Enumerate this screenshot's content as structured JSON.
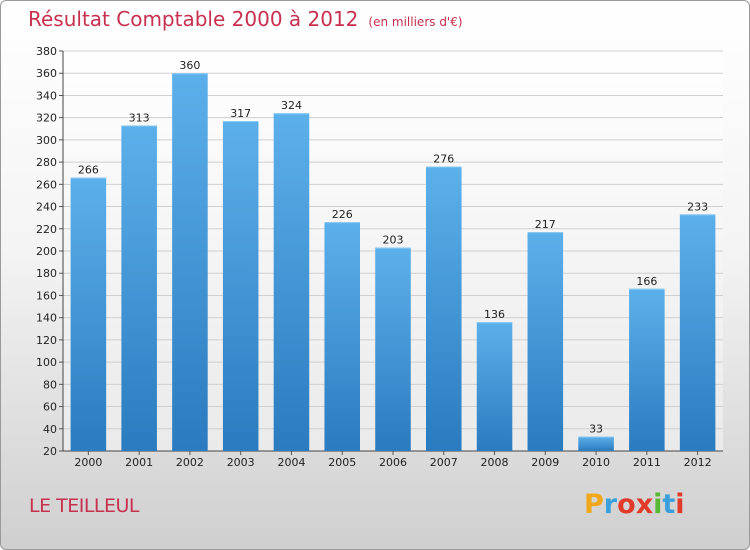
{
  "header": {
    "title": "Résultat Comptable 2000 à 2012",
    "subtitle": "(en milliers d'€)"
  },
  "footer": {
    "commune": "LE TEILLEUL",
    "logo_letters": [
      "P",
      "r",
      "o",
      "x",
      "i",
      "t",
      "i"
    ],
    "logo_colors": [
      "#f0a81a",
      "#3aa0dc",
      "#e23a2a",
      "#e23a2a",
      "#58b935",
      "#3aa0dc",
      "#e23a2a"
    ]
  },
  "chart_data": {
    "type": "bar",
    "categories": [
      "2000",
      "2001",
      "2002",
      "2003",
      "2004",
      "2005",
      "2006",
      "2007",
      "2008",
      "2009",
      "2010",
      "2011",
      "2012"
    ],
    "values": [
      266,
      313,
      360,
      317,
      324,
      226,
      203,
      276,
      136,
      217,
      33,
      166,
      233
    ],
    "title": "Résultat Comptable 2000 à 2012",
    "subtitle": "(en milliers d'€)",
    "xlabel": "",
    "ylabel": "",
    "ylim": [
      20,
      380
    ],
    "yticks": [
      20,
      40,
      60,
      80,
      100,
      120,
      140,
      160,
      180,
      200,
      220,
      240,
      260,
      280,
      300,
      320,
      340,
      360,
      380
    ],
    "grid": true,
    "legend": "none",
    "bar_color": "#3d93d6"
  }
}
